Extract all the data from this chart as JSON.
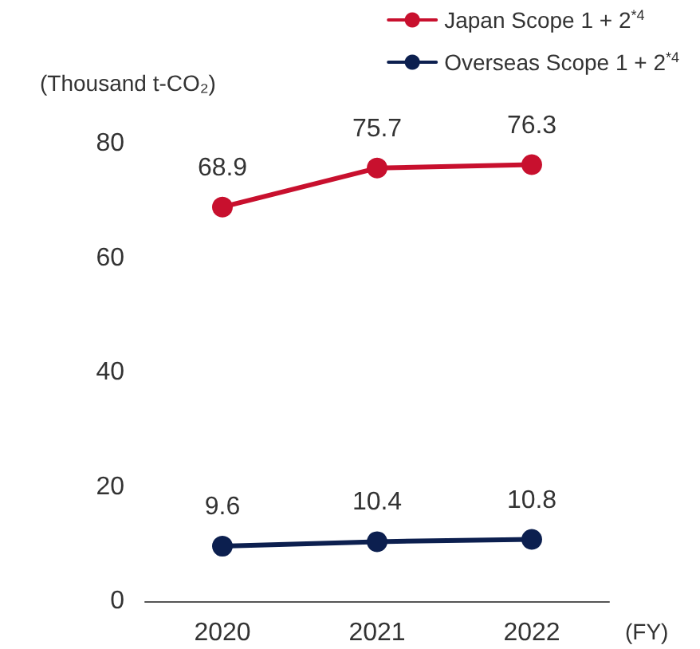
{
  "chart_data": {
    "type": "line",
    "categories": [
      "2020",
      "2021",
      "2022"
    ],
    "series": [
      {
        "name": "Japan Scope 1 + 2$^{*4}$",
        "color": "#c8102e",
        "values": [
          68.9,
          75.7,
          76.3
        ]
      },
      {
        "name": "Overseas Scope 1 + 2$^{*4}$",
        "color": "#0c1f4f",
        "values": [
          9.6,
          10.4,
          10.8
        ]
      }
    ],
    "ylabel": "(Thousand t-CO₂)",
    "xlabel": "(FY)",
    "ylim": [
      0,
      80
    ],
    "yticks": [
      0,
      20,
      40,
      60,
      80
    ],
    "data_labels": true,
    "marker": "circle",
    "line_style": "solid",
    "legend": "top right",
    "grid": false
  }
}
